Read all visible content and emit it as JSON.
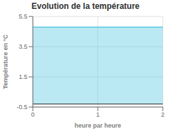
{
  "chart_data": {
    "type": "area",
    "title": "Evolution de la température",
    "xlabel": "heure par heure",
    "ylabel": "Température en °C",
    "x": [
      0,
      2
    ],
    "values": [
      4.8,
      4.8
    ],
    "baseline": -0.3,
    "xlim": [
      0,
      2
    ],
    "ylim": [
      -0.5,
      5.5
    ],
    "xticks": [
      0,
      1,
      2
    ],
    "yticks": [
      -0.5,
      1.5,
      3.5,
      5.5
    ],
    "color": "#55c8e0",
    "grid": true
  }
}
